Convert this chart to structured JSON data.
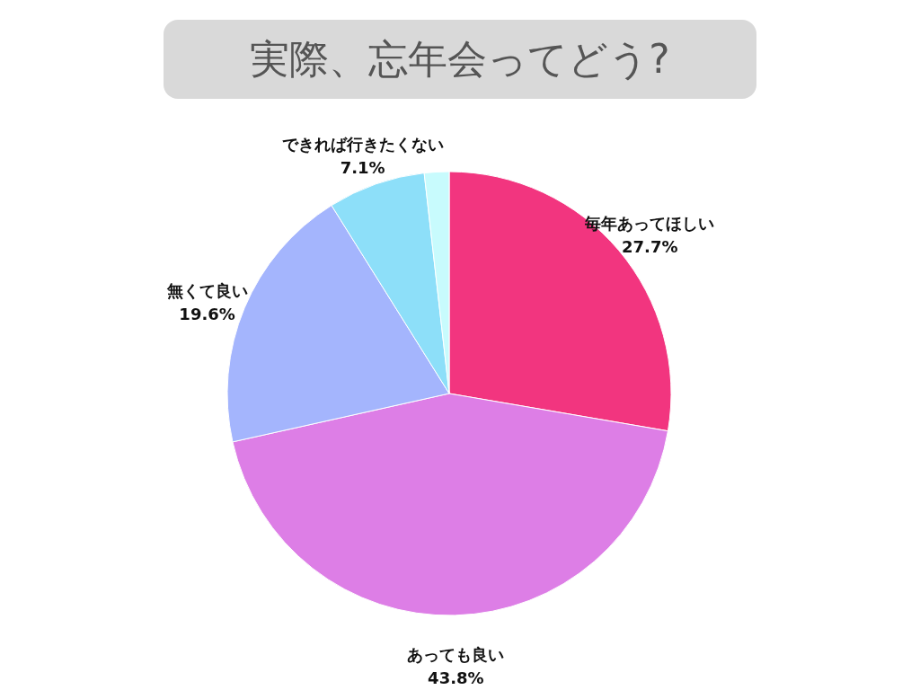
{
  "chart_data": {
    "type": "pie",
    "title": "実際、忘年会ってどう?",
    "categories": [
      "毎年あってほしい",
      "あっても良い",
      "無くて良い",
      "できれば行きたくない",
      null
    ],
    "values": [
      27.7,
      43.8,
      19.6,
      7.1,
      1.8
    ],
    "value_labels": [
      "27.7%",
      "43.8%",
      "19.6%",
      "7.1%",
      null
    ],
    "colors": [
      "#f2357f",
      "#dd7ee6",
      "#a4b5fd",
      "#8ddff9",
      "#c8fbfd"
    ]
  }
}
